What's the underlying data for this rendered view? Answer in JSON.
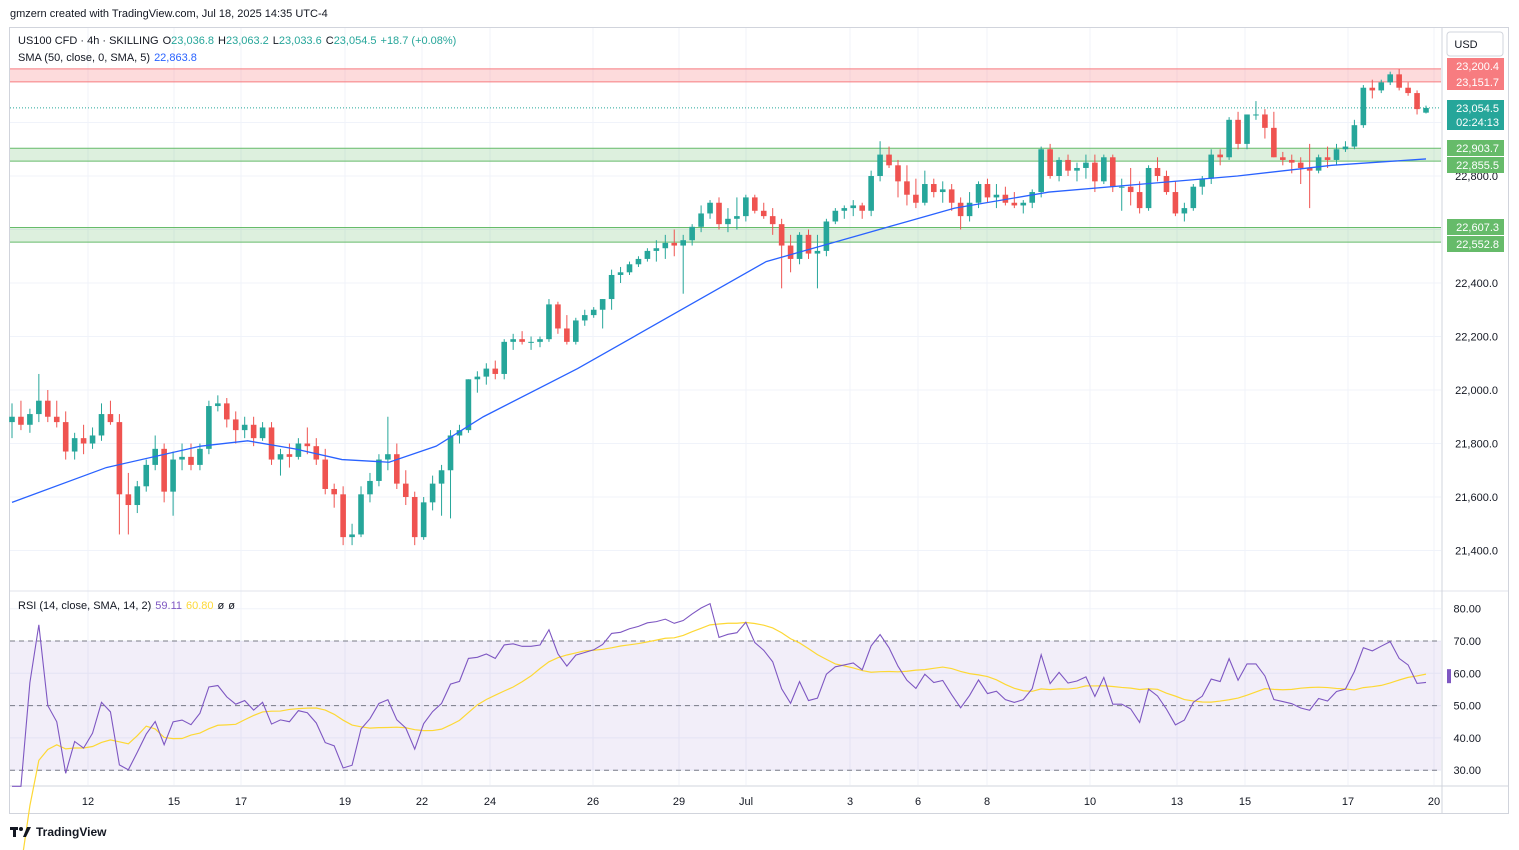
{
  "header": {
    "attribution": "gmzern created with TradingView.com, Jul 18, 2025 14:35 UTC-4"
  },
  "legend": {
    "symbol": "US100 CFD · 4h · SKILLING",
    "open_label": "O",
    "open": "23,036.8",
    "high_label": "H",
    "high": "23,063.2",
    "low_label": "L",
    "low": "23,033.6",
    "close_label": "C",
    "close": "23,054.5",
    "change": "+18.7 (+0.08%)",
    "sma_label": "SMA (50, close, 0, SMA, 5)",
    "sma_value": "22,863.8"
  },
  "rsi_legend": {
    "label": "RSI (14, close, SMA, 14, 2)",
    "rsi": "59.11",
    "rsi_sma": "60.80",
    "extra1": "ø",
    "extra2": "ø"
  },
  "currency": "USD",
  "price_badges": [
    {
      "text": "23,200.4",
      "color": "#f77c80",
      "value": 23200.4
    },
    {
      "text": "23,151.7",
      "color": "#f77c80",
      "value": 23151.7
    },
    {
      "text": "23,054.5",
      "color": "#26a69a",
      "value": 23054.5
    },
    {
      "text": "02:24:13",
      "color": "#26a69a",
      "value": 23010
    },
    {
      "text": "22,903.7",
      "color": "#66bb6a",
      "value": 22903.7
    },
    {
      "text": "22,855.5",
      "color": "#66bb6a",
      "value": 22855.5
    },
    {
      "text": "22,607.3",
      "color": "#66bb6a",
      "value": 22607.3
    },
    {
      "text": "22,552.8",
      "color": "#66bb6a",
      "value": 22552.8
    }
  ],
  "brand": {
    "logo_text": "TradingView"
  },
  "colors": {
    "up": "#26a69a",
    "down": "#ef5350",
    "sma": "#2962ff",
    "rsi": "#7e57c2",
    "rsi_sma": "#fdd835",
    "resistance": "#f77c80",
    "support": "#66bb6a"
  },
  "chart_data": {
    "type": "candlestick",
    "timeframe": "4h",
    "price_axis": {
      "ticks": [
        "22,800.0",
        "22,400.0",
        "22,200.0",
        "22,000.0",
        "21,800.0",
        "21,600.0",
        "21,400.0"
      ],
      "range": [
        21250,
        23400
      ]
    },
    "x_ticks": [
      "12",
      "15",
      "17",
      "19",
      "22",
      "24",
      "26",
      "29",
      "Jul",
      "3",
      "6",
      "8",
      "10",
      "13",
      "15",
      "17",
      "20"
    ],
    "zones": [
      {
        "name": "resistance",
        "low": 23151.7,
        "high": 23200.4
      },
      {
        "name": "support",
        "low": 22855.5,
        "high": 22903.7
      },
      {
        "name": "support",
        "low": 22552.8,
        "high": 22607.3
      }
    ],
    "candles": [
      [
        21880,
        21950,
        21820,
        21900
      ],
      [
        21900,
        21960,
        21850,
        21870
      ],
      [
        21870,
        21930,
        21840,
        21910
      ],
      [
        21910,
        22060,
        21880,
        21960
      ],
      [
        21960,
        22000,
        21880,
        21900
      ],
      [
        21900,
        21960,
        21860,
        21880
      ],
      [
        21880,
        21920,
        21740,
        21770
      ],
      [
        21770,
        21840,
        21740,
        21820
      ],
      [
        21820,
        21870,
        21760,
        21800
      ],
      [
        21800,
        21860,
        21780,
        21830
      ],
      [
        21830,
        21950,
        21810,
        21910
      ],
      [
        21910,
        21960,
        21870,
        21880
      ],
      [
        21880,
        21910,
        21460,
        21610
      ],
      [
        21610,
        21690,
        21460,
        21570
      ],
      [
        21570,
        21660,
        21540,
        21640
      ],
      [
        21640,
        21740,
        21620,
        21720
      ],
      [
        21720,
        21830,
        21700,
        21780
      ],
      [
        21780,
        21800,
        21580,
        21620
      ],
      [
        21620,
        21770,
        21530,
        21740
      ],
      [
        21740,
        21800,
        21700,
        21750
      ],
      [
        21750,
        21800,
        21700,
        21720
      ],
      [
        21720,
        21800,
        21700,
        21780
      ],
      [
        21780,
        21960,
        21760,
        21940
      ],
      [
        21940,
        21980,
        21920,
        21950
      ],
      [
        21950,
        21970,
        21860,
        21890
      ],
      [
        21890,
        21920,
        21800,
        21850
      ],
      [
        21850,
        21900,
        21820,
        21870
      ],
      [
        21870,
        21900,
        21790,
        21820
      ],
      [
        21820,
        21880,
        21810,
        21860
      ],
      [
        21860,
        21880,
        21720,
        21740
      ],
      [
        21740,
        21780,
        21680,
        21760
      ],
      [
        21760,
        21800,
        21710,
        21750
      ],
      [
        21750,
        21820,
        21740,
        21800
      ],
      [
        21800,
        21860,
        21760,
        21790
      ],
      [
        21790,
        21820,
        21720,
        21740
      ],
      [
        21740,
        21780,
        21610,
        21630
      ],
      [
        21630,
        21650,
        21560,
        21610
      ],
      [
        21610,
        21640,
        21420,
        21450
      ],
      [
        21450,
        21500,
        21420,
        21460
      ],
      [
        21460,
        21640,
        21450,
        21610
      ],
      [
        21610,
        21690,
        21580,
        21660
      ],
      [
        21660,
        21760,
        21640,
        21740
      ],
      [
        21740,
        21900,
        21700,
        21760
      ],
      [
        21760,
        21800,
        21630,
        21650
      ],
      [
        21650,
        21700,
        21570,
        21600
      ],
      [
        21600,
        21620,
        21420,
        21450
      ],
      [
        21450,
        21600,
        21440,
        21580
      ],
      [
        21580,
        21680,
        21550,
        21650
      ],
      [
        21650,
        21720,
        21530,
        21700
      ],
      [
        21700,
        21850,
        21520,
        21830
      ],
      [
        21830,
        21870,
        21800,
        21850
      ],
      [
        21850,
        22040,
        21840,
        22040
      ],
      [
        22040,
        22070,
        21990,
        22050
      ],
      [
        22050,
        22100,
        22020,
        22080
      ],
      [
        22080,
        22110,
        22040,
        22060
      ],
      [
        22060,
        22190,
        22040,
        22180
      ],
      [
        22180,
        22210,
        22150,
        22190
      ],
      [
        22190,
        22220,
        22170,
        22180
      ],
      [
        22180,
        22200,
        22150,
        22180
      ],
      [
        22180,
        22200,
        22160,
        22190
      ],
      [
        22190,
        22340,
        22180,
        22320
      ],
      [
        22320,
        22330,
        22210,
        22230
      ],
      [
        22230,
        22280,
        22170,
        22180
      ],
      [
        22180,
        22270,
        22170,
        22260
      ],
      [
        22260,
        22300,
        22240,
        22280
      ],
      [
        22280,
        22310,
        22270,
        22300
      ],
      [
        22300,
        22340,
        22230,
        22340
      ],
      [
        22340,
        22450,
        22300,
        22430
      ],
      [
        22430,
        22460,
        22400,
        22440
      ],
      [
        22440,
        22480,
        22430,
        22470
      ],
      [
        22470,
        22500,
        22460,
        22490
      ],
      [
        22490,
        22530,
        22480,
        22520
      ],
      [
        22520,
        22560,
        22480,
        22530
      ],
      [
        22530,
        22580,
        22490,
        22550
      ],
      [
        22550,
        22600,
        22500,
        22540
      ],
      [
        22540,
        22580,
        22360,
        22560
      ],
      [
        22560,
        22620,
        22540,
        22610
      ],
      [
        22610,
        22690,
        22590,
        22660
      ],
      [
        22660,
        22710,
        22640,
        22700
      ],
      [
        22700,
        22720,
        22600,
        22620
      ],
      [
        22620,
        22680,
        22590,
        22640
      ],
      [
        22640,
        22720,
        22600,
        22650
      ],
      [
        22650,
        22730,
        22630,
        22720
      ],
      [
        22720,
        22730,
        22660,
        22670
      ],
      [
        22670,
        22700,
        22640,
        22650
      ],
      [
        22650,
        22680,
        22580,
        22620
      ],
      [
        22620,
        22640,
        22380,
        22540
      ],
      [
        22540,
        22580,
        22440,
        22490
      ],
      [
        22490,
        22590,
        22470,
        22580
      ],
      [
        22580,
        22600,
        22490,
        22510
      ],
      [
        22510,
        22580,
        22380,
        22520
      ],
      [
        22520,
        22640,
        22500,
        22630
      ],
      [
        22630,
        22680,
        22620,
        22670
      ],
      [
        22670,
        22690,
        22640,
        22680
      ],
      [
        22680,
        22710,
        22650,
        22690
      ],
      [
        22690,
        22700,
        22640,
        22670
      ],
      [
        22670,
        22820,
        22650,
        22800
      ],
      [
        22800,
        22930,
        22780,
        22880
      ],
      [
        22880,
        22910,
        22830,
        22840
      ],
      [
        22840,
        22860,
        22720,
        22780
      ],
      [
        22780,
        22840,
        22690,
        22730
      ],
      [
        22730,
        22790,
        22680,
        22700
      ],
      [
        22700,
        22820,
        22690,
        22770
      ],
      [
        22770,
        22790,
        22720,
        22740
      ],
      [
        22740,
        22780,
        22700,
        22750
      ],
      [
        22750,
        22770,
        22670,
        22700
      ],
      [
        22700,
        22720,
        22600,
        22650
      ],
      [
        22650,
        22740,
        22630,
        22700
      ],
      [
        22700,
        22780,
        22680,
        22770
      ],
      [
        22770,
        22790,
        22700,
        22720
      ],
      [
        22720,
        22770,
        22680,
        22730
      ],
      [
        22730,
        22760,
        22690,
        22700
      ],
      [
        22700,
        22740,
        22680,
        22690
      ],
      [
        22690,
        22710,
        22660,
        22700
      ],
      [
        22700,
        22750,
        22680,
        22740
      ],
      [
        22740,
        22910,
        22720,
        22900
      ],
      [
        22900,
        22920,
        22790,
        22800
      ],
      [
        22800,
        22870,
        22780,
        22860
      ],
      [
        22860,
        22880,
        22800,
        22820
      ],
      [
        22820,
        22850,
        22780,
        22830
      ],
      [
        22830,
        22880,
        22790,
        22850
      ],
      [
        22850,
        22880,
        22740,
        22780
      ],
      [
        22780,
        22880,
        22770,
        22870
      ],
      [
        22870,
        22880,
        22740,
        22760
      ],
      [
        22760,
        22790,
        22670,
        22760
      ],
      [
        22760,
        22830,
        22690,
        22740
      ],
      [
        22740,
        22780,
        22660,
        22680
      ],
      [
        22680,
        22840,
        22670,
        22830
      ],
      [
        22830,
        22870,
        22780,
        22800
      ],
      [
        22800,
        22820,
        22730,
        22740
      ],
      [
        22740,
        22780,
        22650,
        22660
      ],
      [
        22660,
        22700,
        22630,
        22680
      ],
      [
        22680,
        22770,
        22670,
        22760
      ],
      [
        22760,
        22800,
        22730,
        22790
      ],
      [
        22790,
        22900,
        22770,
        22880
      ],
      [
        22880,
        22900,
        22840,
        22870
      ],
      [
        22870,
        23020,
        22860,
        23010
      ],
      [
        23010,
        23040,
        22900,
        22920
      ],
      [
        22920,
        23030,
        22900,
        23030
      ],
      [
        23030,
        23080,
        23010,
        23030
      ],
      [
        23030,
        23050,
        22940,
        22980
      ],
      [
        22980,
        23040,
        22870,
        22870
      ],
      [
        22870,
        22890,
        22840,
        22860
      ],
      [
        22860,
        22880,
        22810,
        22850
      ],
      [
        22850,
        22870,
        22770,
        22830
      ],
      [
        22830,
        22920,
        22680,
        22820
      ],
      [
        22820,
        22880,
        22810,
        22870
      ],
      [
        22870,
        22910,
        22830,
        22860
      ],
      [
        22860,
        22920,
        22840,
        22900
      ],
      [
        22900,
        22930,
        22890,
        22910
      ],
      [
        22910,
        23010,
        22900,
        22990
      ],
      [
        22990,
        23140,
        22980,
        23130
      ],
      [
        23130,
        23160,
        23090,
        23120
      ],
      [
        23120,
        23160,
        23110,
        23150
      ],
      [
        23150,
        23190,
        23140,
        23180
      ],
      [
        23180,
        23200,
        23120,
        23130
      ],
      [
        23130,
        23150,
        23100,
        23110
      ],
      [
        23110,
        23120,
        23030,
        23050
      ],
      [
        23036.8,
        23063.2,
        23033.6,
        23054.5
      ]
    ],
    "sma": [
      [
        0,
        21580
      ],
      [
        20,
        21710
      ],
      [
        40,
        21790
      ],
      [
        50,
        21810
      ],
      [
        60,
        21780
      ],
      [
        70,
        21740
      ],
      [
        80,
        21730
      ],
      [
        90,
        21790
      ],
      [
        100,
        21900
      ],
      [
        120,
        22080
      ],
      [
        140,
        22280
      ],
      [
        160,
        22480
      ],
      [
        180,
        22580
      ],
      [
        190,
        22630
      ],
      [
        200,
        22680
      ],
      [
        220,
        22740
      ],
      [
        240,
        22770
      ],
      [
        260,
        22800
      ],
      [
        280,
        22840
      ],
      [
        300,
        22863.8
      ]
    ],
    "rsi": {
      "axis_ticks": [
        "80.00",
        "70.00",
        "60.00",
        "50.00",
        "40.00",
        "30.00"
      ],
      "levels": [
        70,
        50,
        30
      ],
      "current": 59.11,
      "sma_current": 60.8
    }
  }
}
